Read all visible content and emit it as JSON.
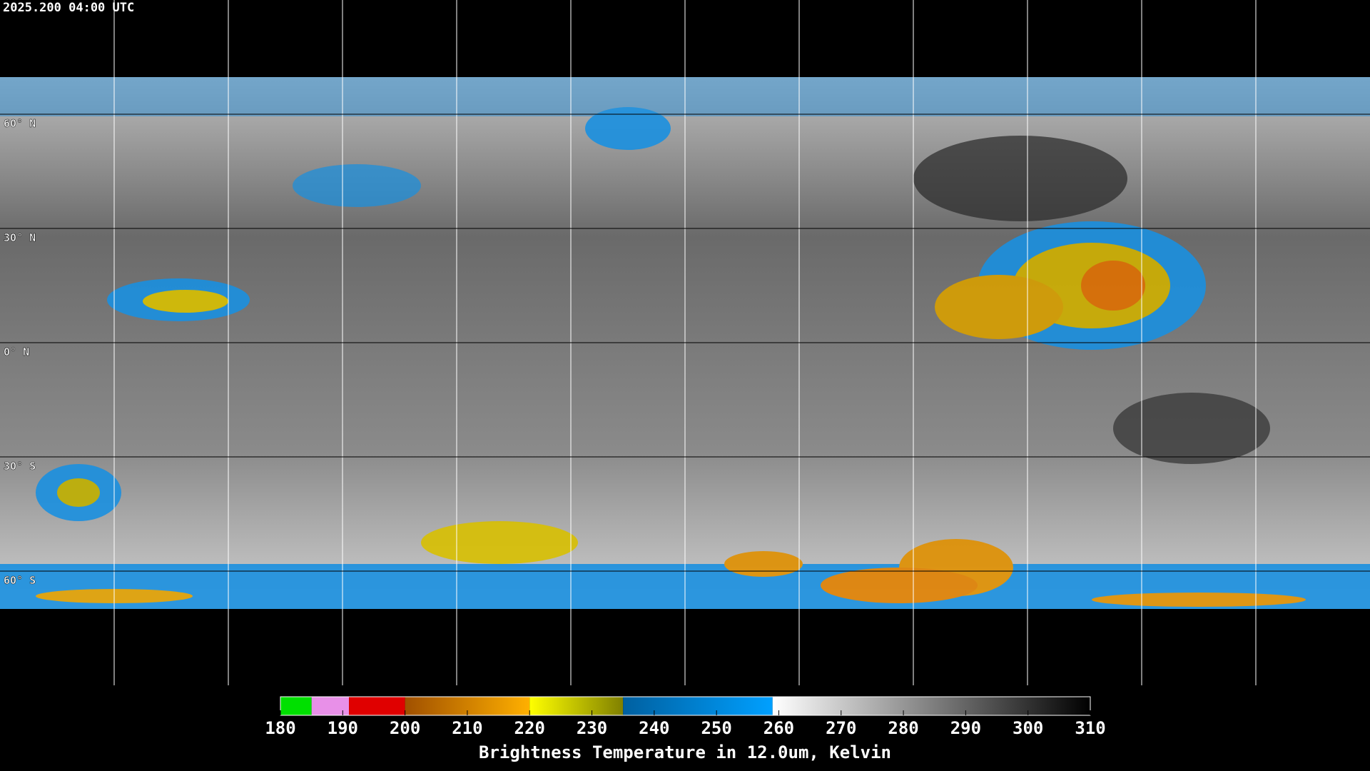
{
  "header": {
    "timestamp": "2025.200 04:00 UTC"
  },
  "map": {
    "lat_labels": [
      "60° N",
      "30° N",
      "0° N",
      "30° S",
      "60° S"
    ]
  },
  "colorbar": {
    "title": "Brightness Temperature in 12.0um, Kelvin",
    "range": [
      180,
      310
    ],
    "ticks": [
      180,
      190,
      200,
      210,
      220,
      230,
      240,
      250,
      260,
      270,
      280,
      290,
      300,
      310
    ],
    "segments": [
      {
        "from": 180,
        "to": 185,
        "colors": [
          "#00e000",
          "#00e000"
        ]
      },
      {
        "from": 185,
        "to": 191,
        "colors": [
          "#e890e8",
          "#e890e8"
        ]
      },
      {
        "from": 191,
        "to": 200,
        "colors": [
          "#e00000",
          "#e00000"
        ]
      },
      {
        "from": 200,
        "to": 220,
        "colors": [
          "#a05000",
          "#ffb000"
        ]
      },
      {
        "from": 220,
        "to": 235,
        "colors": [
          "#ffff00",
          "#808000"
        ]
      },
      {
        "from": 235,
        "to": 259,
        "colors": [
          "#0060a0",
          "#00a0ff"
        ]
      },
      {
        "from": 259,
        "to": 310,
        "colors": [
          "#ffffff",
          "#000000"
        ]
      }
    ]
  }
}
